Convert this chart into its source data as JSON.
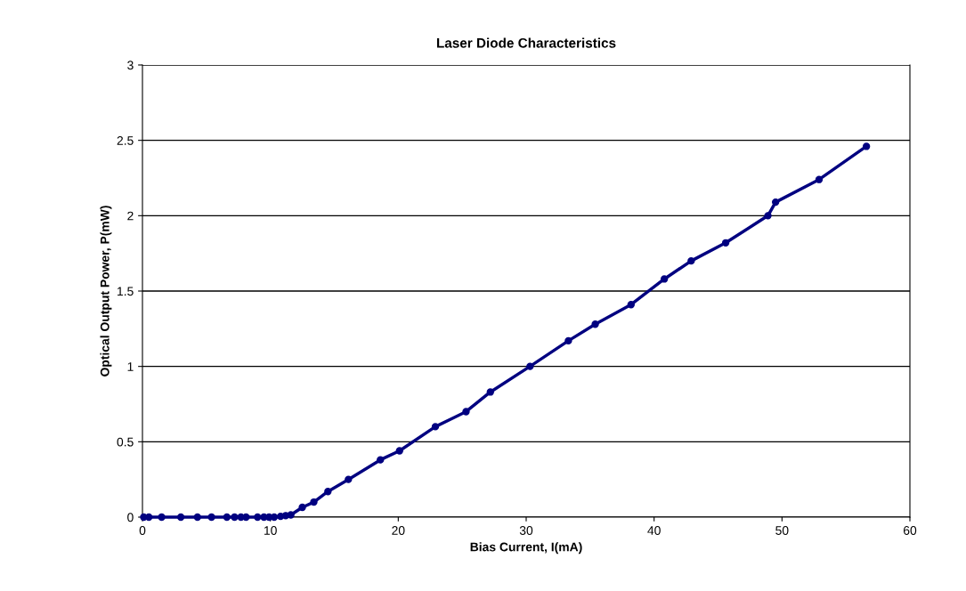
{
  "chart_data": {
    "type": "line",
    "title": "Laser Diode Characteristics",
    "xlabel": "Bias Current, I(mA)",
    "ylabel": "Optical Output Power, P(mW)",
    "x": [
      0.1,
      0.5,
      1.5,
      3.0,
      4.3,
      5.4,
      6.6,
      7.2,
      7.7,
      8.1,
      9.0,
      9.5,
      9.9,
      10.3,
      10.8,
      11.2,
      11.6,
      12.5,
      13.4,
      14.5,
      16.1,
      18.6,
      20.1,
      22.9,
      25.3,
      27.2,
      30.3,
      33.3,
      35.4,
      38.2,
      40.8,
      42.9,
      45.6,
      48.9,
      49.5,
      52.9,
      56.6
    ],
    "series": [
      {
        "color": "#000080",
        "values": [
          0,
          0,
          0,
          0,
          0,
          0,
          0,
          0,
          0,
          0,
          0,
          0,
          0,
          0,
          0.005,
          0.01,
          0.015,
          0.065,
          0.1,
          0.17,
          0.25,
          0.38,
          0.44,
          0.6,
          0.7,
          0.83,
          1.0,
          1.17,
          1.28,
          1.41,
          1.58,
          1.7,
          1.82,
          2.0,
          2.09,
          2.24,
          2.46
        ]
      }
    ],
    "xlim": [
      0,
      60
    ],
    "xticks": [
      0,
      10,
      20,
      30,
      40,
      50,
      60
    ],
    "ylim": [
      0,
      3
    ],
    "yticks": [
      0,
      0.5,
      1,
      1.5,
      2,
      2.5,
      3
    ],
    "grid": "y",
    "marker": "circle",
    "line_style": "solid",
    "legend": false
  }
}
